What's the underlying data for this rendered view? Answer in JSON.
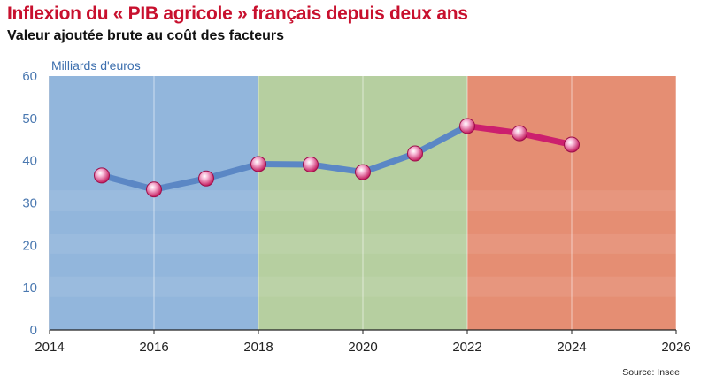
{
  "header": {
    "title": "Inflexion du « PIB agricole » français depuis deux ans",
    "subtitle": "Valeur ajoutée brute au coût des facteurs"
  },
  "footer": {
    "source": "Source: Insee"
  },
  "colors": {
    "title": "#c8102e",
    "series_early": "#5b87c5",
    "series_recent": "#cc1f6e",
    "marker": "#c2185b",
    "panel_blue": "#7fa9d6",
    "panel_green": "#a9c78f",
    "panel_red": "#e07a5a"
  },
  "chart_data": {
    "type": "line",
    "ylabel": "Milliards d'euros",
    "xlim": [
      2014,
      2026
    ],
    "ylim": [
      0,
      60
    ],
    "xticks": [
      "2014",
      "2016",
      "2018",
      "2020",
      "2022",
      "2024",
      "2026"
    ],
    "yticks": [
      "0",
      "10",
      "20",
      "30",
      "40",
      "50",
      "60"
    ],
    "grid": "vertical",
    "x": [
      2015,
      2016,
      2017,
      2018,
      2019,
      2020,
      2021,
      2022,
      2023,
      2024
    ],
    "series": [
      {
        "values": [
          36.5,
          33.2,
          35.8,
          39.2,
          39.1,
          37.3,
          41.7,
          48.2,
          46.5,
          43.8
        ]
      }
    ],
    "highlight_from": 2022,
    "background_panels": [
      {
        "from": 2014,
        "to": 2018,
        "color": "#7fa9d6"
      },
      {
        "from": 2018,
        "to": 2022,
        "color": "#a9c78f"
      },
      {
        "from": 2022,
        "to": 2026,
        "color": "#e07a5a"
      }
    ]
  }
}
